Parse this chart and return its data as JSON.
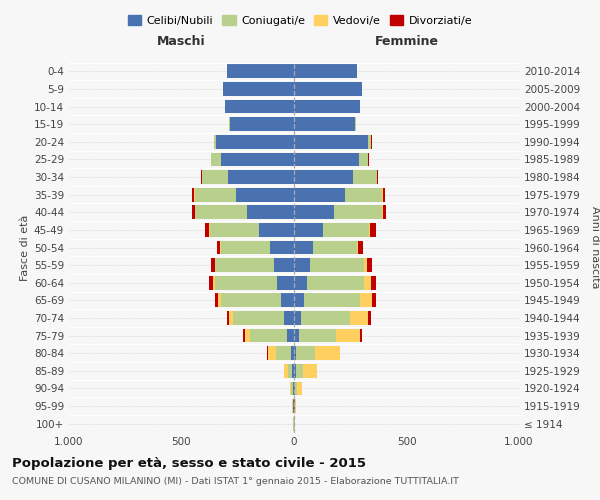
{
  "age_groups": [
    "100+",
    "95-99",
    "90-94",
    "85-89",
    "80-84",
    "75-79",
    "70-74",
    "65-69",
    "60-64",
    "55-59",
    "50-54",
    "45-49",
    "40-44",
    "35-39",
    "30-34",
    "25-29",
    "20-24",
    "15-19",
    "10-14",
    "5-9",
    "0-4"
  ],
  "birth_years": [
    "≤ 1914",
    "1915-1919",
    "1920-1924",
    "1925-1929",
    "1930-1934",
    "1935-1939",
    "1940-1944",
    "1945-1949",
    "1950-1954",
    "1955-1959",
    "1960-1964",
    "1965-1969",
    "1970-1974",
    "1975-1979",
    "1980-1984",
    "1985-1989",
    "1990-1994",
    "1995-1999",
    "2000-2004",
    "2005-2009",
    "2010-2014"
  ],
  "colors": {
    "celibe": "#4A72B0",
    "coniugato": "#B8D08C",
    "vedovo": "#FFD060",
    "divorziato": "#C00000"
  },
  "maschi_celibe": [
    2,
    3,
    5,
    8,
    12,
    30,
    45,
    60,
    75,
    90,
    105,
    155,
    210,
    260,
    295,
    325,
    345,
    285,
    305,
    315,
    300
  ],
  "maschi_coniugato": [
    1,
    2,
    8,
    20,
    70,
    165,
    225,
    265,
    278,
    260,
    220,
    220,
    230,
    182,
    112,
    42,
    10,
    3,
    0,
    0,
    0
  ],
  "maschi_vedovo": [
    1,
    2,
    6,
    16,
    35,
    25,
    20,
    15,
    7,
    3,
    2,
    2,
    1,
    1,
    0,
    0,
    0,
    0,
    0,
    0,
    0
  ],
  "maschi_divorziato": [
    0,
    0,
    0,
    1,
    2,
    5,
    9,
    13,
    17,
    18,
    16,
    18,
    13,
    9,
    7,
    4,
    2,
    1,
    0,
    0,
    0
  ],
  "femmine_nubile": [
    2,
    3,
    4,
    8,
    10,
    20,
    32,
    45,
    58,
    72,
    85,
    130,
    178,
    228,
    260,
    288,
    328,
    272,
    292,
    302,
    282
  ],
  "femmine_coniugata": [
    1,
    3,
    10,
    30,
    85,
    165,
    215,
    248,
    255,
    240,
    195,
    205,
    215,
    165,
    108,
    42,
    16,
    3,
    0,
    0,
    0
  ],
  "femmine_vedova": [
    2,
    5,
    22,
    62,
    108,
    108,
    82,
    52,
    28,
    11,
    5,
    3,
    2,
    1,
    0,
    0,
    0,
    0,
    0,
    0,
    0
  ],
  "femmine_divorziata": [
    0,
    0,
    1,
    2,
    3,
    7,
    13,
    18,
    22,
    22,
    22,
    27,
    15,
    10,
    6,
    4,
    2,
    0,
    0,
    0,
    0
  ],
  "title": "Popolazione per età, sesso e stato civile - 2015",
  "subtitle": "COMUNE DI CUSANO MILANINO (MI) - Dati ISTAT 1° gennaio 2015 - Elaborazione TUTTITALIA.IT",
  "xlabel_left": "Maschi",
  "xlabel_right": "Femmine",
  "ylabel_left": "Fasce di età",
  "ylabel_right": "Anni di nascita",
  "xlim": 1000,
  "xticklabels": [
    "1.000",
    "500",
    "0",
    "500",
    "1.000"
  ],
  "legend_labels": [
    "Celibi/Nubili",
    "Coniugati/e",
    "Vedovi/e",
    "Divorziati/e"
  ],
  "bg_color": "#f7f7f7",
  "grid_color": "#cccccc",
  "bar_height": 0.78
}
